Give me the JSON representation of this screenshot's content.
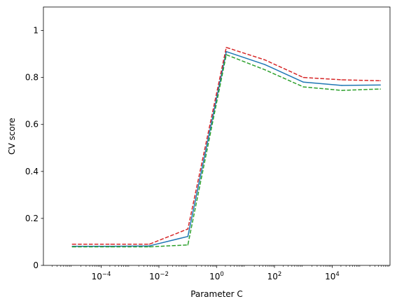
{
  "chart_data": {
    "type": "line",
    "title": "",
    "xlabel": "Parameter C",
    "ylabel": "CV score",
    "xscale": "log",
    "xlim": [
      1e-06,
      1000000.0
    ],
    "ylim": [
      0,
      1.1
    ],
    "grid": false,
    "legend": "none",
    "x": [
      1e-05,
      0.000215,
      0.00464,
      0.1,
      2.15,
      46.4,
      1000,
      21500,
      464000
    ],
    "series": [
      {
        "color": "#1f77b4",
        "dash": "solid",
        "values": [
          0.081,
          0.081,
          0.083,
          0.123,
          0.91,
          0.855,
          0.78,
          0.766,
          0.768
        ]
      },
      {
        "color": "#d62728",
        "dash": "dashed",
        "values": [
          0.09,
          0.09,
          0.09,
          0.155,
          0.928,
          0.875,
          0.8,
          0.79,
          0.786
        ]
      },
      {
        "color": "#2ca02c",
        "dash": "dashed",
        "values": [
          0.079,
          0.079,
          0.079,
          0.087,
          0.897,
          0.833,
          0.76,
          0.745,
          0.751
        ]
      }
    ],
    "x_ticks": [
      {
        "value": 0.0001,
        "base": "10",
        "exp": "−4"
      },
      {
        "value": 0.01,
        "base": "10",
        "exp": "−2"
      },
      {
        "value": 1,
        "base": "10",
        "exp": "0"
      },
      {
        "value": 100,
        "base": "10",
        "exp": "2"
      },
      {
        "value": 10000,
        "base": "10",
        "exp": "4"
      }
    ],
    "y_ticks": [
      {
        "value": 0,
        "label": "0"
      },
      {
        "value": 0.2,
        "label": "0.2"
      },
      {
        "value": 0.4,
        "label": "0.4"
      },
      {
        "value": 0.6,
        "label": "0.6"
      },
      {
        "value": 0.8,
        "label": "0.8"
      },
      {
        "value": 1.0,
        "label": "1"
      }
    ]
  }
}
